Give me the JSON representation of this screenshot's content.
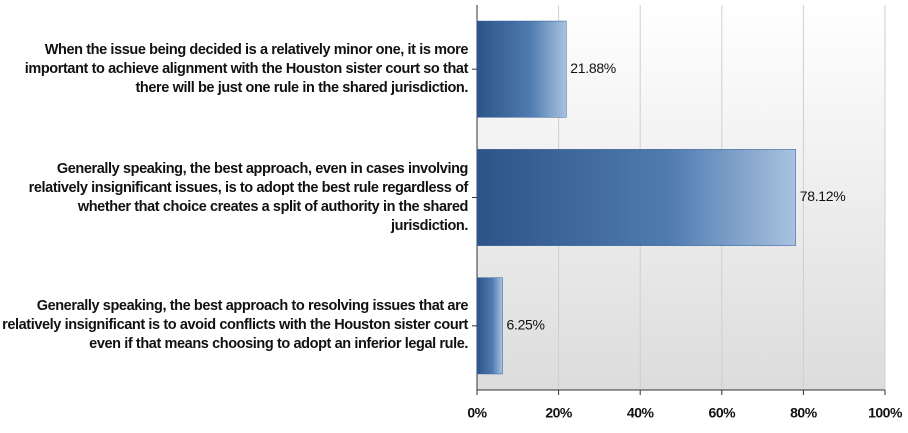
{
  "chart_data": {
    "type": "bar",
    "orientation": "horizontal",
    "categories": [
      "When the issue being decided is a relatively minor one, it is more important to achieve alignment with the Houston sister court so that there will be just one rule in the shared jurisdiction.",
      "Generally speaking, the best approach, even in cases involving relatively insignificant issues, is to adopt the best rule regardless of whether that choice creates a split of authority in the shared jurisdiction.",
      "Generally speaking, the best approach to resolving issues that are relatively insignificant is to avoid conflicts with the Houston sister court even if that means choosing to adopt an inferior legal rule."
    ],
    "values": [
      21.88,
      78.12,
      6.25
    ],
    "value_labels": [
      "21.88%",
      "78.12%",
      "6.25%"
    ],
    "color": "#2f5c93",
    "xlim": [
      0,
      100
    ],
    "xticks": [
      {
        "value": 0,
        "label": "0%"
      },
      {
        "value": 20,
        "label": "20%"
      },
      {
        "value": 40,
        "label": "40%"
      },
      {
        "value": 60,
        "label": "60%"
      },
      {
        "value": 80,
        "label": "80%"
      },
      {
        "value": 100,
        "label": "100%"
      }
    ],
    "grid": true
  }
}
